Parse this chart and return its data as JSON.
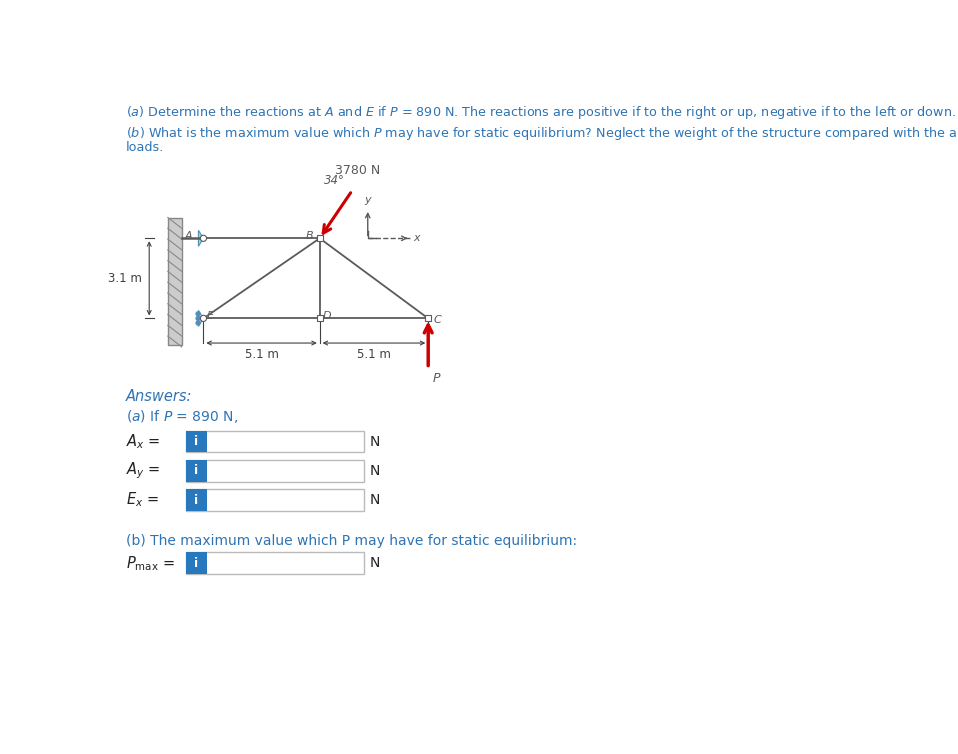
{
  "title_a": "(a) Determine the reactions at A and E if P = 890 N. The reactions are positive if to the right or up, negative if to the left or down.",
  "title_b1": "(b) What is the maximum value which P may have for static equilibrium? Neglect the weight of the structure compared with the applied",
  "title_b2": "loads.",
  "answers_label": "Answers:",
  "part_a_label": "(a) If P = 890 N,",
  "part_b_label": "(b) The maximum value which P may have for static equilibrium:",
  "unit": "N",
  "force_label": "3780 N",
  "angle_label": "34°",
  "dim_31": "3.1 m",
  "dim_51a": "5.1 m",
  "dim_51b": "5.1 m",
  "nodes": {
    "A": "A",
    "B": "B",
    "C": "C",
    "D": "D",
    "E": "E"
  },
  "bg_color": "#ffffff",
  "text_color": "#2e74b5",
  "struct_color": "#5a5a5a",
  "arrow_color": "#cc0000",
  "support_color": "#a8cce0",
  "i_button_color": "#2878be",
  "wall_color": "#aaaaaa"
}
